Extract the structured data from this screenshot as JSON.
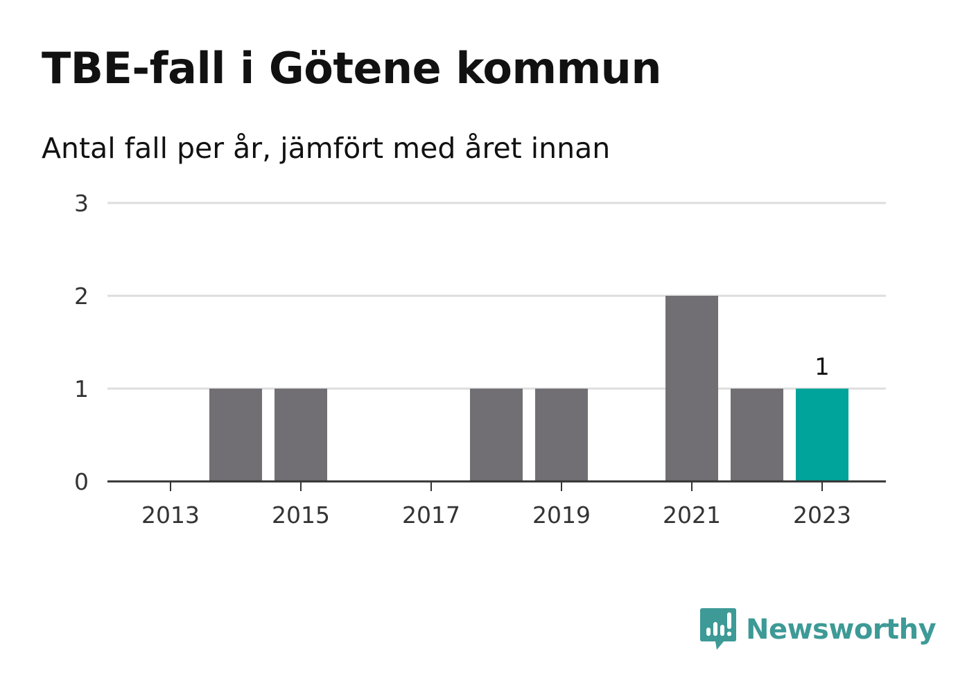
{
  "header": {
    "title": "TBE-fall i Götene kommun",
    "subtitle": "Antal fall per år, jämfört med året innan"
  },
  "brand": {
    "name": "Newsworthy",
    "icon": "bar-chart-speech-bubble-icon",
    "color": "#3d9a96"
  },
  "colors": {
    "bar": "#716f74",
    "highlight": "#00a49a",
    "grid": "#dddddd",
    "axis": "#333333"
  },
  "chart_data": {
    "type": "bar",
    "categories": [
      "2013",
      "2014",
      "2015",
      "2016",
      "2017",
      "2018",
      "2019",
      "2020",
      "2021",
      "2022",
      "2023"
    ],
    "values": [
      0,
      1,
      1,
      0,
      0,
      1,
      1,
      0,
      2,
      1,
      1
    ],
    "highlight_category": "2023",
    "x_tick_labels": [
      "2013",
      "2015",
      "2017",
      "2019",
      "2021",
      "2023"
    ],
    "y_ticks": [
      0,
      1,
      2,
      3
    ],
    "ylim": [
      0,
      3
    ],
    "data_labels": [
      {
        "category": "2023",
        "text": "1"
      }
    ],
    "xlabel": "",
    "ylabel": "",
    "grid": true
  }
}
